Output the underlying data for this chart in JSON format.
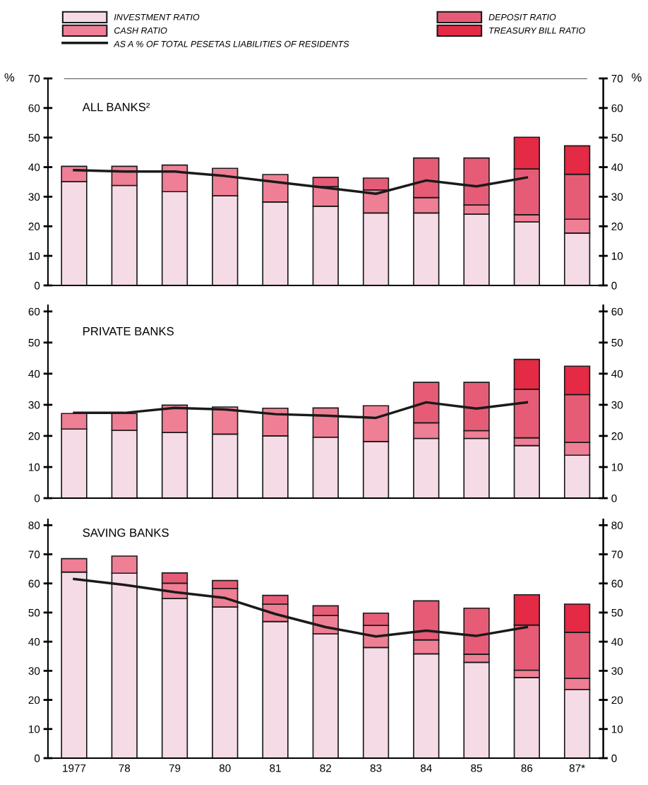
{
  "chart_data": [
    {
      "type": "bar",
      "title": "ALL BANKS²",
      "stacked": true,
      "ylabel": "%",
      "y2label": "%",
      "legend": "top",
      "tick_labels": "y",
      "categories": [
        null,
        null,
        null,
        null,
        null,
        null,
        null,
        null,
        null,
        null,
        null
      ],
      "ylim": [
        0,
        70
      ],
      "yticks": [
        0,
        10,
        20,
        30,
        40,
        50,
        60,
        70
      ],
      "y2lim": [
        0,
        70
      ],
      "y2ticks": [
        0,
        10,
        20,
        30,
        40,
        50,
        60,
        70
      ],
      "ref_lines": [
        {
          "axis": "y",
          "value": 70,
          "color": "#1a1a1a"
        }
      ],
      "series": [
        {
          "name": "INVESTMENT RATIO",
          "color": "#f5dbe6",
          "values": [
            35.1,
            33.8,
            31.7,
            30.3,
            28.2,
            26.8,
            24.5,
            24.5,
            24.1,
            21.5,
            17.7
          ]
        },
        {
          "name": "CASH RATIO",
          "color": "#ef7f95",
          "values": [
            5.2,
            6.5,
            9.0,
            9.3,
            9.3,
            6.6,
            7.8,
            5.2,
            3.1,
            2.4,
            4.7
          ]
        },
        {
          "name": "DEPOSIT RATIO",
          "color": "#e65c77",
          "values": [
            null,
            null,
            null,
            null,
            null,
            3.1,
            4.0,
            13.4,
            15.9,
            15.5,
            15.2
          ]
        },
        {
          "name": "TREASURY BILL RATIO",
          "color": "#e52a45",
          "values": [
            null,
            null,
            null,
            null,
            null,
            null,
            null,
            null,
            null,
            10.7,
            9.6
          ]
        },
        {
          "name": "AS A % OF TOTAL PESETAS LIABILITIES OF RESIDENTS",
          "type": "line",
          "color": "#1a1a1a",
          "values": [
            39,
            38.5,
            38.5,
            37,
            35,
            33,
            31,
            35.5,
            33.5,
            36.5,
            null
          ]
        }
      ]
    },
    {
      "type": "bar",
      "title": "PRIVATE BANKS",
      "stacked": true,
      "tick_labels": "y",
      "categories": [
        null,
        null,
        null,
        null,
        null,
        null,
        null,
        null,
        null,
        null,
        null
      ],
      "ylim": [
        0,
        62
      ],
      "yticks": [
        0,
        10,
        20,
        30,
        40,
        50,
        60
      ],
      "y2lim": [
        0,
        62
      ],
      "y2ticks": [
        0,
        10,
        20,
        30,
        40,
        50,
        60
      ],
      "series": [
        {
          "color": "#f5dbe6",
          "values": [
            22.2,
            21.8,
            21.1,
            20.6,
            20.0,
            19.6,
            18.2,
            19.2,
            19.2,
            16.9,
            13.8
          ]
        },
        {
          "color": "#ef7f95",
          "values": [
            5.0,
            5.4,
            8.8,
            8.7,
            8.9,
            9.4,
            11.5,
            5.0,
            2.5,
            2.5,
            4.1
          ]
        },
        {
          "color": "#e65c77",
          "values": [
            null,
            null,
            null,
            null,
            null,
            null,
            null,
            13.0,
            15.5,
            15.6,
            15.4
          ]
        },
        {
          "color": "#e52a45",
          "values": [
            null,
            null,
            null,
            null,
            null,
            null,
            null,
            null,
            null,
            9.6,
            9.1
          ]
        },
        {
          "type": "line",
          "color": "#1a1a1a",
          "values": [
            27.4,
            27.4,
            29,
            28.5,
            27,
            26.5,
            25.8,
            30.8,
            28.8,
            30.8,
            null
          ]
        }
      ]
    },
    {
      "type": "bar",
      "title": "SAVING BANKS",
      "stacked": true,
      "categories": [
        "1977",
        "78",
        "79",
        "80",
        "81",
        "82",
        "83",
        "84",
        "85",
        "86",
        "87*"
      ],
      "ylim": [
        0,
        82
      ],
      "yticks": [
        0,
        10,
        20,
        30,
        40,
        50,
        60,
        70,
        80
      ],
      "y2lim": [
        0,
        82
      ],
      "y2ticks": [
        0,
        10,
        20,
        30,
        40,
        50,
        60,
        70,
        80
      ],
      "series": [
        {
          "color": "#f5dbe6",
          "values": [
            63.9,
            63.5,
            54.8,
            51.9,
            46.9,
            42.7,
            38.0,
            35.8,
            32.9,
            27.7,
            23.6
          ]
        },
        {
          "color": "#ef7f95",
          "values": [
            4.6,
            5.9,
            5.3,
            6.4,
            6.0,
            6.3,
            7.6,
            4.8,
            2.8,
            2.5,
            3.8
          ]
        },
        {
          "color": "#e65c77",
          "values": [
            null,
            null,
            3.5,
            2.7,
            3.0,
            3.3,
            4.2,
            13.4,
            15.8,
            15.5,
            15.8
          ]
        },
        {
          "color": "#e52a45",
          "values": [
            null,
            null,
            null,
            null,
            null,
            null,
            null,
            null,
            null,
            10.4,
            9.7
          ]
        },
        {
          "type": "line",
          "color": "#1a1a1a",
          "values": [
            61.5,
            59.5,
            57,
            55,
            49.5,
            45,
            41.8,
            43.8,
            42,
            45,
            null
          ]
        }
      ]
    }
  ]
}
